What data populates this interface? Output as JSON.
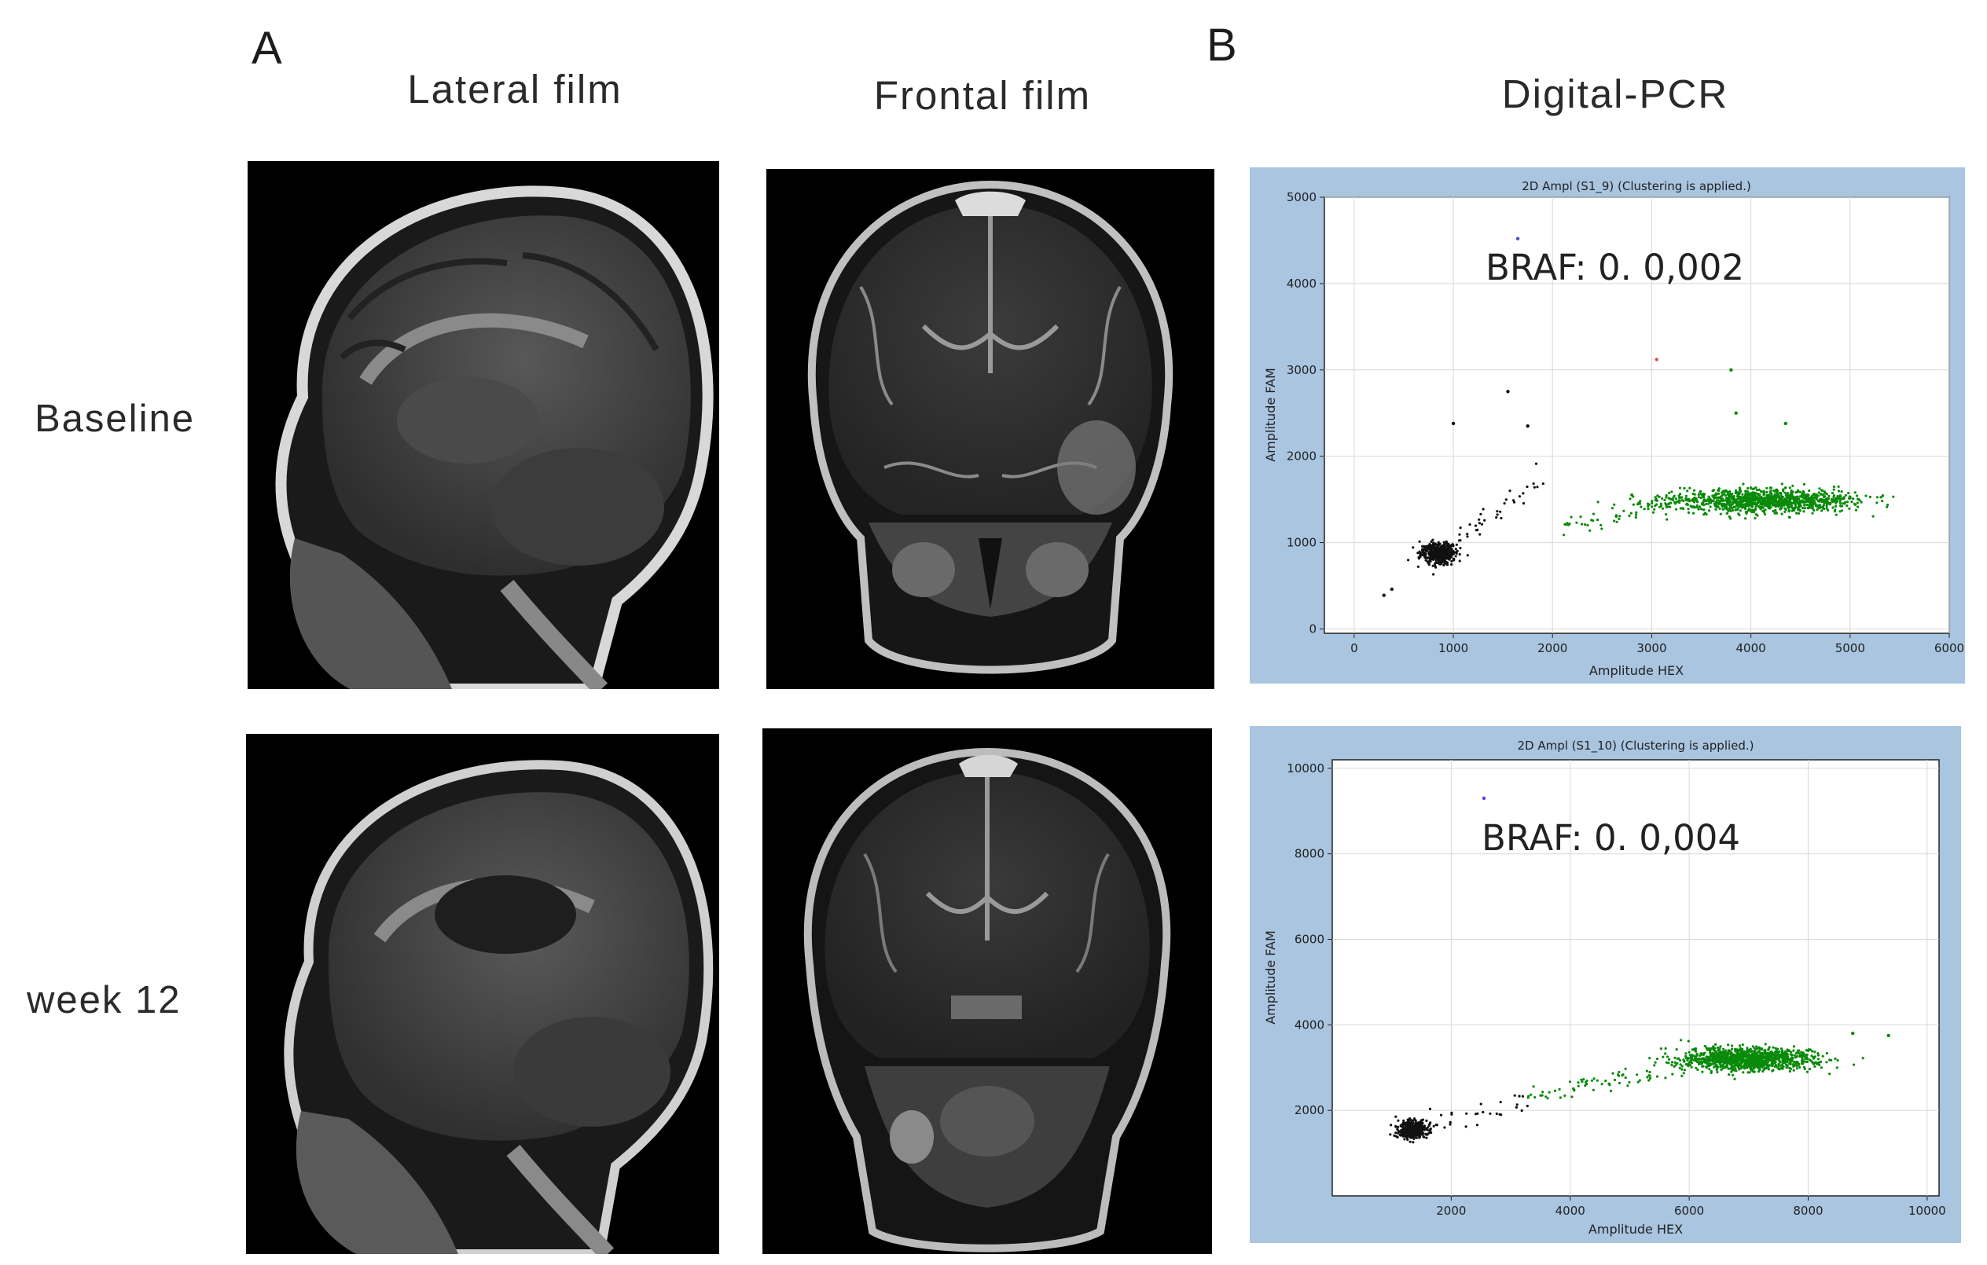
{
  "figure": {
    "panel_a_letter": "A",
    "panel_b_letter": "B",
    "column_titles": {
      "lateral": "Lateral film",
      "frontal": "Frontal film",
      "pcr": "Digital-PCR"
    },
    "row_labels": {
      "baseline": "Baseline",
      "week12": "week 12"
    }
  },
  "chart_data": [
    {
      "type": "scatter",
      "title": "2D Ampl (S1_9) (Clustering is applied.)",
      "xlabel": "Amplitude HEX",
      "ylabel": "Amplitude FAM",
      "xlim": [
        -300,
        6000
      ],
      "ylim": [
        -50,
        5000
      ],
      "xticks": [
        0,
        1000,
        2000,
        3000,
        4000,
        5000,
        6000
      ],
      "yticks": [
        0,
        1000,
        2000,
        3000,
        4000,
        5000
      ],
      "grid": true,
      "annotation": "BRAF: 0. 0,002",
      "clusters": [
        {
          "color": "#111111",
          "center": [
            850,
            880
          ],
          "spread": [
            90,
            60
          ],
          "count": 450
        },
        {
          "color": "#0a8a0a",
          "center": [
            4150,
            1480
          ],
          "spread": [
            450,
            55
          ],
          "count": 1100
        }
      ],
      "bridge": [
        {
          "color": "#111111",
          "from": [
            900,
            900
          ],
          "to": [
            1900,
            1750
          ],
          "count": 40
        },
        {
          "color": "#0a8a0a",
          "from": [
            2000,
            1150
          ],
          "to": [
            3500,
            1550
          ],
          "count": 70
        }
      ],
      "outliers": [
        {
          "x": 1650,
          "y": 4520,
          "color": "#4a4ad0"
        },
        {
          "x": 3050,
          "y": 3120,
          "color": "#e05050"
        },
        {
          "x": 3800,
          "y": 3000,
          "color": "#0a8a0a"
        },
        {
          "x": 1550,
          "y": 2750,
          "color": "#111111"
        },
        {
          "x": 1000,
          "y": 2380,
          "color": "#111111"
        },
        {
          "x": 1750,
          "y": 2350,
          "color": "#111111"
        },
        {
          "x": 3850,
          "y": 2500,
          "color": "#0a8a0a"
        },
        {
          "x": 4350,
          "y": 2380,
          "color": "#0a8a0a"
        },
        {
          "x": 300,
          "y": 390,
          "color": "#111111"
        },
        {
          "x": 380,
          "y": 460,
          "color": "#111111"
        }
      ]
    },
    {
      "type": "scatter",
      "title": "2D Ampl (S1_10) (Clustering is applied.)",
      "xlabel": "Amplitude HEX",
      "ylabel": "Amplitude FAM",
      "xlim": [
        0,
        10200
      ],
      "ylim": [
        0,
        10200
      ],
      "xticks": [
        2000,
        4000,
        6000,
        8000,
        10000
      ],
      "yticks": [
        2000,
        4000,
        6000,
        8000,
        10000
      ],
      "grid": true,
      "annotation": "BRAF: 0. 0,004",
      "clusters": [
        {
          "color": "#111111",
          "center": [
            1350,
            1550
          ],
          "spread": [
            120,
            100
          ],
          "count": 450
        },
        {
          "color": "#0a8a0a",
          "center": [
            6950,
            3200
          ],
          "spread": [
            550,
            120
          ],
          "count": 1200
        }
      ],
      "bridge": [
        {
          "color": "#111111",
          "from": [
            1500,
            1650
          ],
          "to": [
            3300,
            2250
          ],
          "count": 30
        },
        {
          "color": "#0a8a0a",
          "from": [
            3300,
            2300
          ],
          "to": [
            6000,
            3000
          ],
          "count": 70
        }
      ],
      "outliers": [
        {
          "x": 2550,
          "y": 9300,
          "color": "#4a4ad0"
        },
        {
          "x": 9350,
          "y": 3750,
          "color": "#0a8a0a"
        },
        {
          "x": 8750,
          "y": 3800,
          "color": "#0a8a0a"
        }
      ]
    }
  ]
}
